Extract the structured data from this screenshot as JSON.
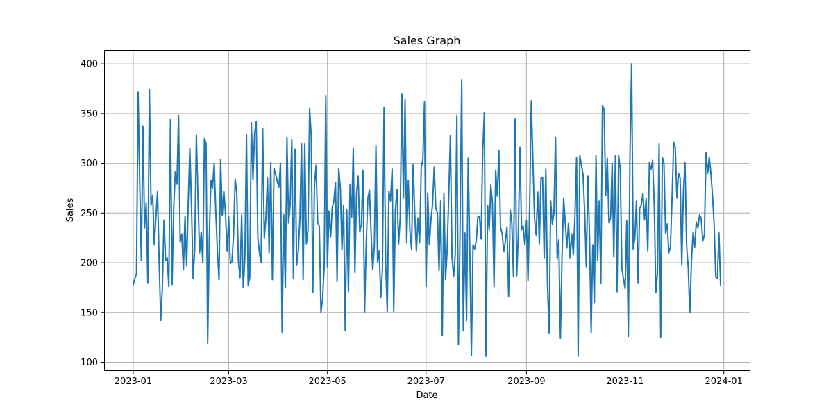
{
  "chart_data": {
    "type": "line",
    "title": "Sales Graph",
    "xlabel": "Date",
    "ylabel": "Sales",
    "x_start": "2023-01-01",
    "x_end": "2023-12-31",
    "x_ticks": [
      "2023-01",
      "2023-03",
      "2023-05",
      "2023-07",
      "2023-09",
      "2023-11",
      "2024-01"
    ],
    "y_ticks": [
      100,
      150,
      200,
      250,
      300,
      350,
      400
    ],
    "xlim": [
      "2022-12-14",
      "2024-01-17"
    ],
    "ylim": [
      92,
      414
    ],
    "grid": true,
    "series_color": "#1f77b4",
    "series": [
      {
        "name": "",
        "values": [
          178,
          184,
          189,
          372,
          281,
          202,
          337,
          235,
          260,
          180,
          374,
          258,
          268,
          218,
          245,
          272,
          201,
          142,
          175,
          243,
          202,
          205,
          176,
          344,
          178,
          255,
          292,
          279,
          348,
          221,
          229,
          193,
          247,
          197,
          261,
          315,
          257,
          184,
          215,
          329,
          265,
          210,
          231,
          200,
          325,
          320,
          119,
          224,
          283,
          275,
          300,
          252,
          212,
          183,
          304,
          248,
          272,
          250,
          212,
          246,
          199,
          201,
          228,
          284,
          270,
          201,
          185,
          248,
          175,
          205,
          329,
          177,
          185,
          341,
          284,
          330,
          342,
          225,
          210,
          200,
          335,
          225,
          245,
          285,
          210,
          301,
          183,
          295,
          289,
          282,
          276,
          300,
          130,
          248,
          175,
          326,
          240,
          259,
          324,
          184,
          314,
          198,
          211,
          245,
          320,
          183,
          320,
          219,
          233,
          355,
          328,
          170,
          278,
          298,
          240,
          237,
          150,
          164,
          195,
          368,
          196,
          252,
          226,
          256,
          262,
          281,
          181,
          295,
          275,
          213,
          258,
          132,
          253,
          171,
          279,
          246,
          315,
          190,
          269,
          287,
          231,
          239,
          293,
          150,
          220,
          265,
          273,
          230,
          193,
          216,
          318,
          201,
          212,
          165,
          193,
          356,
          200,
          151,
          272,
          262,
          294,
          151,
          253,
          274,
          219,
          245,
          370,
          265,
          364,
          220,
          283,
          232,
          214,
          299,
          250,
          212,
          245,
          220,
          296,
          304,
          362,
          176,
          270,
          218,
          243,
          259,
          296,
          255,
          250,
          192,
          262,
          127,
          270,
          183,
          212,
          268,
          328,
          206,
          186,
          208,
          348,
          118,
          235,
          384,
          132,
          230,
          142,
          305,
          213,
          107,
          218,
          214,
          222,
          246,
          246,
          224,
          313,
          351,
          106,
          258,
          233,
          278,
          260,
          176,
          293,
          267,
          313,
          235,
          230,
          211,
          222,
          236,
          166,
          253,
          240,
          186,
          345,
          187,
          230,
          316,
          233,
          237,
          218,
          242,
          182,
          257,
          363,
          304,
          245,
          228,
          271,
          219,
          285,
          286,
          205,
          294,
          180,
          129,
          262,
          239,
          250,
          326,
          204,
          223,
          124,
          206,
          265,
          241,
          215,
          240,
          205,
          229,
          208,
          248,
          306,
          106,
          308,
          298,
          289,
          251,
          196,
          287,
          226,
          130,
          218,
          160,
          308,
          202,
          262,
          179,
          358,
          354,
          268,
          305,
          240,
          245,
          300,
          206,
          308,
          171,
          308,
          294,
          194,
          184,
          174,
          242,
          126,
          308,
          400,
          214,
          225,
          262,
          180,
          255,
          258,
          270,
          243,
          265,
          212,
          301,
          294,
          303,
          258,
          170,
          190,
          320,
          125,
          306,
          300,
          230,
          239,
          210,
          216,
          265,
          321,
          316,
          265,
          290,
          285,
          198,
          271,
          301,
          218,
          195,
          150,
          202,
          231,
          216,
          241,
          235,
          248,
          245,
          222,
          228,
          311,
          290,
          306,
          290,
          268,
          239,
          186,
          184,
          230,
          177
        ]
      }
    ]
  }
}
